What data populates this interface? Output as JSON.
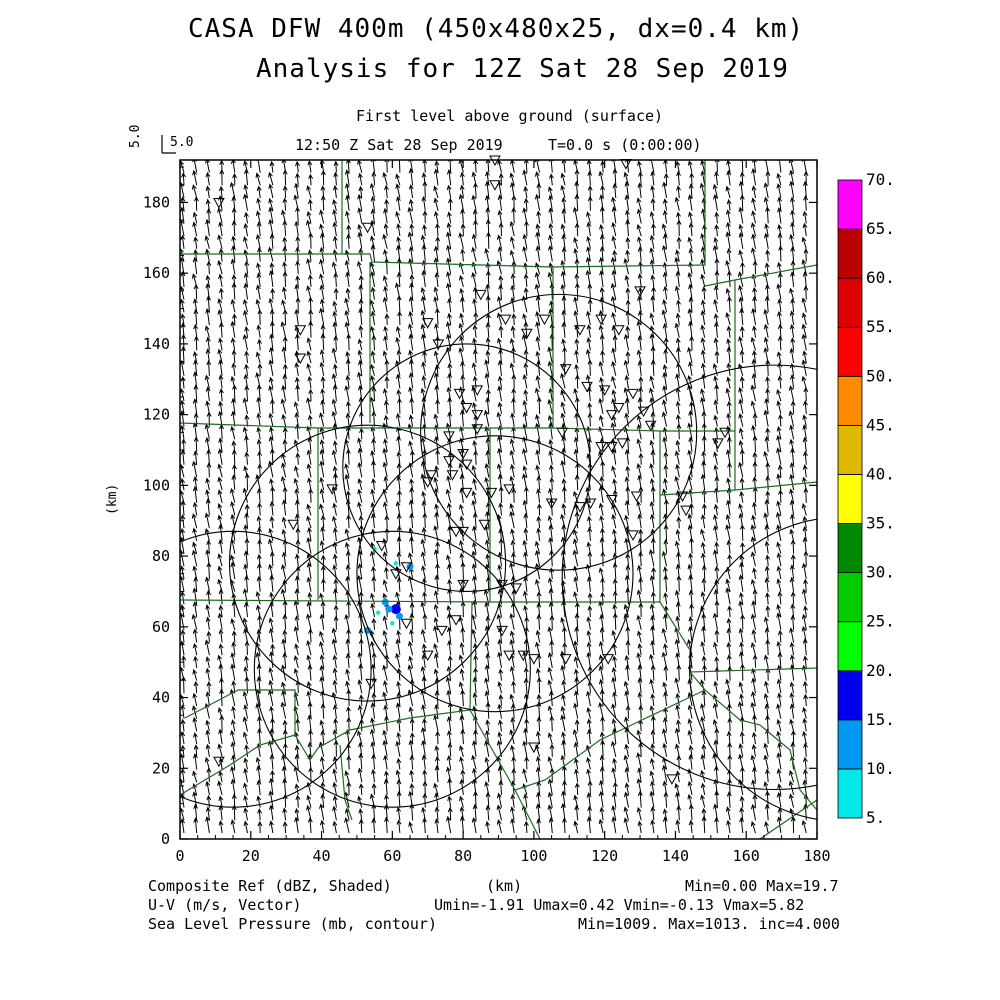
{
  "title_line1": "CASA DFW 400m (450x480x25, dx=0.4 km)",
  "title_line2": "Analysis for 12Z Sat 28 Sep 2019",
  "subtitle": "First level above ground (surface)",
  "time_label": "12:50 Z Sat 28 Sep 2019",
  "time_offset": "T=0.0 s (0:00:00)",
  "ref_vector_label": "5.0",
  "ref_vector_rot": "5.0",
  "footer": {
    "field1": "Composite Ref (dBZ, Shaded)",
    "field2": "U-V (m/s, Vector)",
    "field3": "Sea Level Pressure (mb, contour)",
    "x_unit": "(km)",
    "stats1": "Min=0.00 Max=19.7",
    "stats2": "Umin=-1.91 Umax=0.42 Vmin=-0.13 Vmax=5.82",
    "stats3": "Min=1009. Max=1013. inc=4.000"
  },
  "chart_data": {
    "type": "map",
    "xlabel": "",
    "ylabel": "(km)",
    "xlim": [
      0,
      180
    ],
    "ylim": [
      0,
      192
    ],
    "x_ticks": [
      0,
      20,
      40,
      60,
      80,
      100,
      120,
      140,
      160,
      180
    ],
    "y_ticks": [
      0,
      20,
      40,
      60,
      80,
      100,
      120,
      140,
      160,
      180
    ],
    "colorbar": {
      "labels": [
        "5.",
        "10.",
        "15.",
        "20.",
        "25.",
        "30.",
        "35.",
        "40.",
        "45.",
        "50.",
        "55.",
        "60.",
        "65.",
        "70."
      ],
      "colors": [
        "#00e8e8",
        "#0098f0",
        "#0000ee",
        "#00ff00",
        "#00cc00",
        "#008800",
        "#ffff00",
        "#e0b800",
        "#ff8c00",
        "#ff0000",
        "#dd0000",
        "#bb0000",
        "#ff00ff"
      ]
    },
    "radar_rings": [
      {
        "cx": 15,
        "cy": 48,
        "r": 39
      },
      {
        "cx": 60,
        "cy": 48,
        "r": 39
      },
      {
        "cx": 53,
        "cy": 78,
        "r": 39
      },
      {
        "cx": 89,
        "cy": 75,
        "r": 39
      },
      {
        "cx": 81,
        "cy": 105,
        "r": 35
      },
      {
        "cx": 107,
        "cy": 115,
        "r": 39
      },
      {
        "cx": 168,
        "cy": 74,
        "r": 60
      },
      {
        "cx": 187,
        "cy": 48,
        "r": 43
      }
    ],
    "stations": [
      [
        11,
        180
      ],
      [
        53,
        173
      ],
      [
        89,
        192
      ],
      [
        89,
        185
      ],
      [
        126,
        191
      ],
      [
        34,
        144
      ],
      [
        34,
        136
      ],
      [
        70,
        146
      ],
      [
        73,
        140
      ],
      [
        85,
        154
      ],
      [
        92,
        147
      ],
      [
        98,
        143
      ],
      [
        103,
        147
      ],
      [
        109,
        133
      ],
      [
        113,
        144
      ],
      [
        119,
        147
      ],
      [
        124,
        144
      ],
      [
        130,
        155
      ],
      [
        131,
        121
      ],
      [
        115,
        128
      ],
      [
        120,
        127
      ],
      [
        124,
        122
      ],
      [
        122,
        120
      ],
      [
        128,
        126
      ],
      [
        133,
        117
      ],
      [
        125,
        112
      ],
      [
        122,
        111
      ],
      [
        119,
        111
      ],
      [
        108,
        115
      ],
      [
        84,
        127
      ],
      [
        79,
        126
      ],
      [
        81,
        122
      ],
      [
        84,
        120
      ],
      [
        76,
        114
      ],
      [
        84,
        116
      ],
      [
        80,
        109
      ],
      [
        76,
        107
      ],
      [
        81,
        106
      ],
      [
        77,
        103
      ],
      [
        71,
        103
      ],
      [
        70,
        101
      ],
      [
        81,
        98
      ],
      [
        88,
        98
      ],
      [
        93,
        99
      ],
      [
        105,
        95
      ],
      [
        113,
        94
      ],
      [
        116,
        95
      ],
      [
        122,
        96
      ],
      [
        129,
        97
      ],
      [
        128,
        86
      ],
      [
        142,
        97
      ],
      [
        143,
        93
      ],
      [
        152,
        112
      ],
      [
        154,
        115
      ],
      [
        32,
        89
      ],
      [
        43,
        99
      ],
      [
        57,
        83
      ],
      [
        78,
        87
      ],
      [
        80,
        87
      ],
      [
        86,
        89
      ],
      [
        80,
        72
      ],
      [
        61,
        75
      ],
      [
        64,
        77
      ],
      [
        91,
        72
      ],
      [
        95,
        71
      ],
      [
        91,
        59
      ],
      [
        93,
        52
      ],
      [
        97,
        52
      ],
      [
        100,
        51
      ],
      [
        109,
        51
      ],
      [
        121,
        51
      ],
      [
        54,
        44
      ],
      [
        70,
        52
      ],
      [
        74,
        59
      ],
      [
        78,
        62
      ],
      [
        64,
        61
      ],
      [
        11,
        22
      ],
      [
        100,
        26
      ],
      [
        139,
        17
      ]
    ],
    "reflectivity_cells": [
      {
        "x": 61,
        "y": 65,
        "dbz": 15
      },
      {
        "x": 59,
        "y": 65,
        "dbz": 10
      },
      {
        "x": 62,
        "y": 63,
        "dbz": 10
      },
      {
        "x": 58,
        "y": 67,
        "dbz": 10
      },
      {
        "x": 65,
        "y": 77,
        "dbz": 10
      },
      {
        "x": 53,
        "y": 59,
        "dbz": 10
      },
      {
        "x": 61,
        "y": 78,
        "dbz": 5
      },
      {
        "x": 55,
        "y": 82,
        "dbz": 5
      },
      {
        "x": 56,
        "y": 64,
        "dbz": 5
      },
      {
        "x": 60,
        "y": 61,
        "dbz": 5
      }
    ],
    "wind": {
      "u_mean": -0.6,
      "v_mean": 4.2,
      "u_range": [
        -1.91,
        0.42
      ],
      "v_range": [
        -0.13,
        5.82
      ]
    }
  }
}
